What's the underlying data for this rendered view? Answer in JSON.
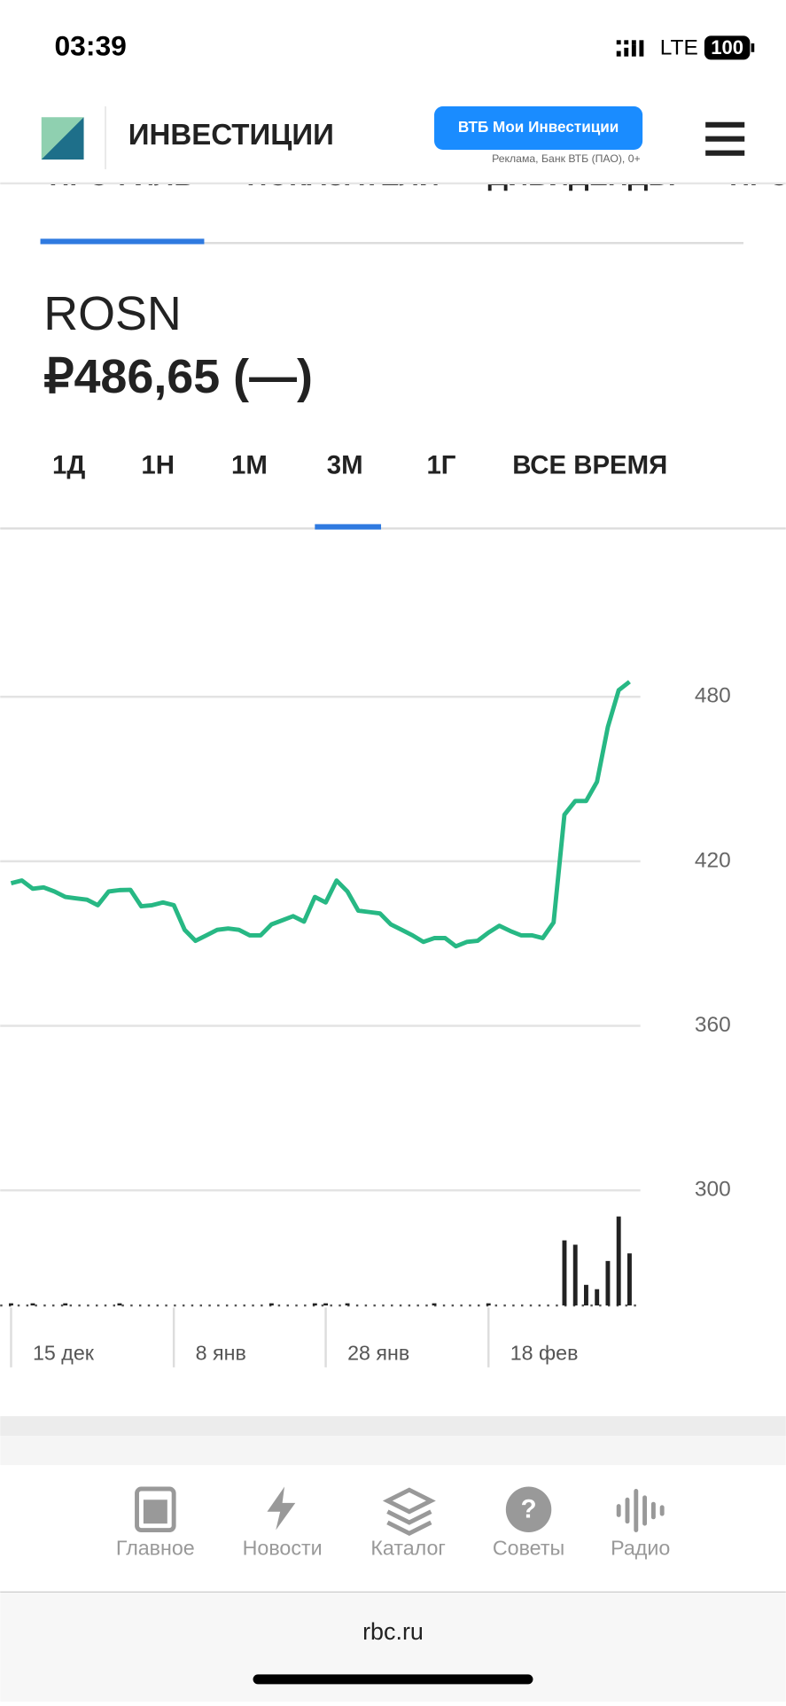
{
  "status": {
    "time": "03:39",
    "network": "LTE",
    "battery": "100"
  },
  "header": {
    "title": "ИНВЕСТИЦИИ",
    "ad_button": "ВТБ Мои Инвестиции",
    "ad_note": "Реклама, Банк ВТБ (ПАО), 0+"
  },
  "tabs": [
    "ПРОФИЛЬ",
    "ПОКАЗАТЕЛИ",
    "ДИВИДЕНДЫ",
    "ПРО"
  ],
  "ticker": "ROSN",
  "price": "₽486,65 (—)",
  "periods": [
    "1Д",
    "1Н",
    "1М",
    "3М",
    "1Г",
    "ВСЕ ВРЕМЯ"
  ],
  "chart_data": {
    "type": "line",
    "color": "#27b884",
    "values": [
      412,
      413,
      410,
      410.5,
      409,
      407,
      406.5,
      406,
      404,
      409,
      409.5,
      409.6,
      403.6,
      404,
      405,
      404,
      395,
      391,
      393,
      395,
      395.5,
      395,
      393,
      393,
      397,
      398.5,
      400,
      398,
      407,
      405,
      413,
      409,
      402,
      401.5,
      401,
      397,
      395,
      393,
      390.6,
      392,
      392,
      389,
      390.6,
      391,
      394,
      396.5,
      394.6,
      393,
      393,
      392,
      397.7,
      437,
      442,
      442,
      449,
      469,
      482.4,
      485.5
    ],
    "volume": [
      2,
      0,
      2,
      0,
      0,
      2,
      0,
      0,
      0,
      0,
      2,
      0,
      0,
      0,
      0,
      0,
      0,
      0,
      0,
      0,
      0,
      0,
      0,
      0,
      2,
      0,
      0,
      0,
      2,
      2,
      0,
      2,
      0,
      0,
      0,
      0,
      0,
      0,
      0,
      2,
      0,
      0,
      0,
      0,
      2,
      0,
      0,
      0,
      0,
      0,
      0,
      60,
      56,
      19,
      15,
      41,
      82,
      48
    ],
    "volume_color": "#222",
    "xlim": [
      -1,
      59
    ],
    "xticks": [
      {
        "value": 0,
        "label": "15 дек"
      },
      {
        "value": 15,
        "label": "8 янв"
      },
      {
        "value": 29,
        "label": "28 янв"
      },
      {
        "value": 44,
        "label": "18 фев"
      }
    ],
    "ylim": [
      258,
      541
    ],
    "yticks": [
      300,
      360,
      420,
      480
    ],
    "grid": true
  },
  "nav": [
    "Главное",
    "Новости",
    "Каталог",
    "Советы",
    "Радио"
  ],
  "url": "rbc.ru"
}
